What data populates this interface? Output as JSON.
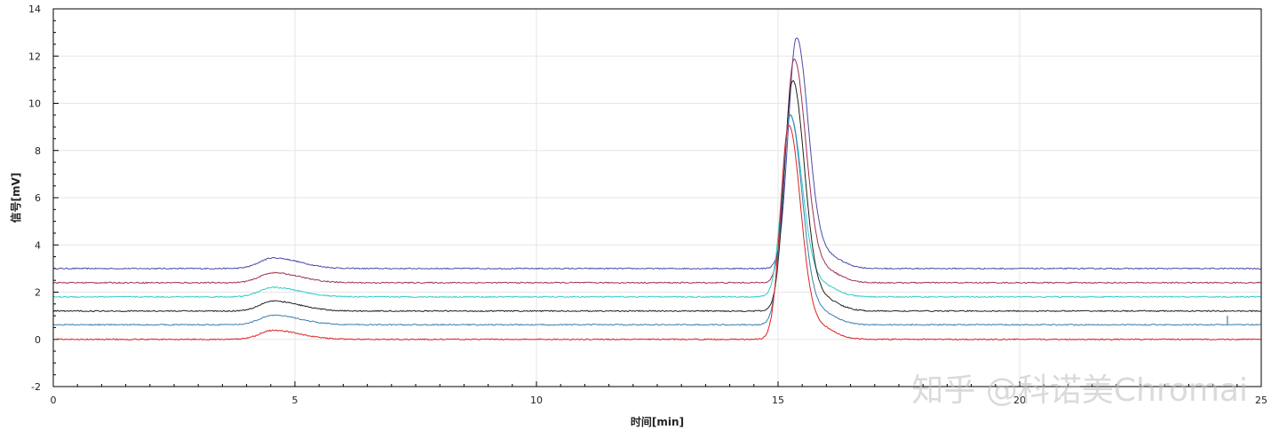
{
  "chart_data": {
    "type": "line",
    "title": "",
    "xlabel": "时间[min]",
    "ylabel": "信号[mV]",
    "xlim": [
      0,
      25
    ],
    "ylim": [
      -2,
      14
    ],
    "x_ticks": [
      0,
      5,
      10,
      15,
      20,
      25
    ],
    "y_ticks": [
      -2,
      0,
      2,
      4,
      6,
      8,
      10,
      12,
      14
    ],
    "grid": true,
    "legend": "none",
    "series": [
      {
        "color": "#4a4aa8",
        "baseline": 3.0,
        "peak1_time": 4.55,
        "peak1_height": 0.45,
        "peak2_time": 15.38,
        "peak2_height": 9.6
      },
      {
        "color": "#a03050",
        "baseline": 2.4,
        "peak1_time": 4.55,
        "peak1_height": 0.42,
        "peak2_time": 15.33,
        "peak2_height": 9.3
      },
      {
        "color": "#30cccc",
        "baseline": 1.8,
        "peak1_time": 4.55,
        "peak1_height": 0.4,
        "peak2_time": 15.25,
        "peak2_height": 7.5
      },
      {
        "color": "#202020",
        "baseline": 1.2,
        "peak1_time": 4.55,
        "peak1_height": 0.42,
        "peak2_time": 15.3,
        "peak2_height": 9.6
      },
      {
        "color": "#3a7fb0",
        "baseline": 0.62,
        "peak1_time": 4.55,
        "peak1_height": 0.4,
        "peak2_time": 15.25,
        "peak2_height": 8.7
      },
      {
        "color": "#dd2222",
        "baseline": 0.0,
        "peak1_time": 4.55,
        "peak1_height": 0.38,
        "peak2_time": 15.22,
        "peak2_height": 8.9
      }
    ],
    "spike": {
      "time": 24.3,
      "value": 1.0
    }
  },
  "watermark": "知乎 @科诺美Chromai"
}
